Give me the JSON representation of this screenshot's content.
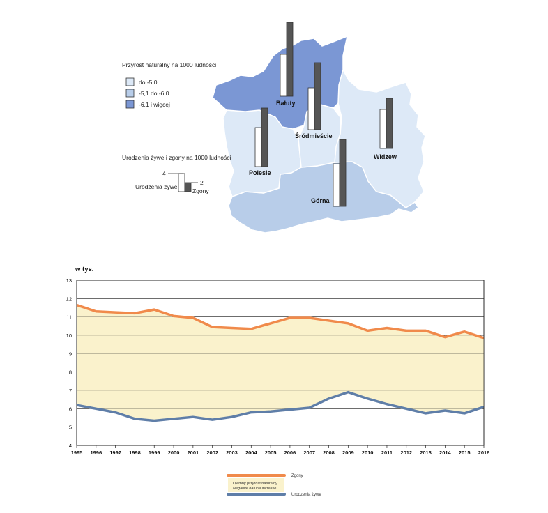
{
  "map": {
    "legend_rate_title": "Przyrost naturalny na 1000 ludności",
    "legend_rate_items": [
      {
        "label": "do -5,0",
        "color": "#dde9f7"
      },
      {
        "label": "-5,1 do -6,0",
        "color": "#b8cde9"
      },
      {
        "label": "-6,1 i więcej",
        "color": "#7b97d4"
      }
    ],
    "legend_bars_title": "Urodzenia żywe i zgony na 1000 ludności",
    "legend_bars_scale_top": "4",
    "legend_bars_scale_mid": "2",
    "legend_bars_births": "Urodzenia żywe",
    "legend_bars_deaths": "Zgony",
    "districts": [
      {
        "name": "Bałuty",
        "color": "#7b97d4"
      },
      {
        "name": "Śródmieście",
        "color": "#dde9f7"
      },
      {
        "name": "Widzew",
        "color": "#dde9f7"
      },
      {
        "name": "Polesie",
        "color": "#dde9f7"
      },
      {
        "name": "Górna",
        "color": "#b8cde9"
      }
    ]
  },
  "chart_data": {
    "type": "area",
    "ylabel": "w tys.",
    "ylim": [
      4,
      13
    ],
    "yticks": [
      "4",
      "5",
      "6",
      "7",
      "8",
      "9",
      "10",
      "11",
      "12",
      "13"
    ],
    "categories": [
      "1995",
      "1996",
      "1997",
      "1998",
      "1999",
      "2000",
      "2001",
      "2002",
      "2003",
      "2004",
      "2005",
      "2006",
      "2007",
      "2008",
      "2009",
      "2010",
      "2011",
      "2012",
      "2013",
      "2014",
      "2015",
      "2016"
    ],
    "series": [
      {
        "name": "Zgony",
        "color": "#f08a4b",
        "values": [
          11.65,
          11.3,
          11.25,
          11.2,
          11.4,
          11.05,
          10.95,
          10.45,
          10.4,
          10.35,
          10.65,
          10.95,
          10.95,
          10.8,
          10.65,
          10.25,
          10.4,
          10.25,
          10.25,
          9.9,
          10.2,
          9.85
        ]
      },
      {
        "name": "Urodzenia żywe",
        "color": "#5f7ea8",
        "values": [
          6.2,
          6.0,
          5.8,
          5.45,
          5.35,
          5.45,
          5.55,
          5.4,
          5.55,
          5.8,
          5.85,
          5.95,
          6.05,
          6.55,
          6.9,
          6.55,
          6.25,
          6.0,
          5.75,
          5.9,
          5.75,
          6.1
        ]
      }
    ],
    "area_label_pl": "Ujemny przyrost naturalny",
    "area_label_en": "Negative natural increase",
    "area_color": "#faf2cc",
    "legend_position": "bottom"
  }
}
